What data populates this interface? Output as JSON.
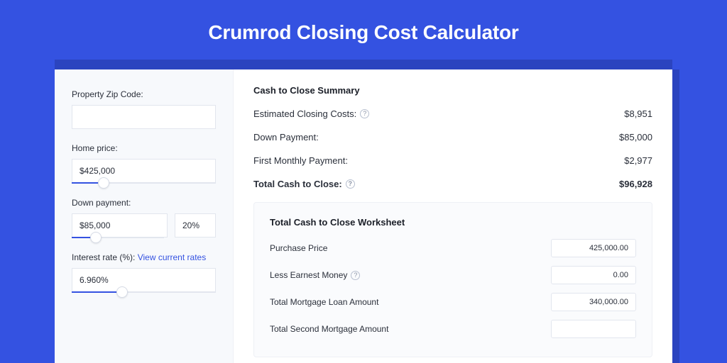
{
  "colors": {
    "page_bg": "#3452e1",
    "shadow": "#2b44bf",
    "card_bg": "#ffffff",
    "left_panel_bg": "#f7f9fc",
    "input_border": "#e2e6ee",
    "slider_fill": "#3452e1",
    "text": "#2a2f3a",
    "link": "#3452e1",
    "worksheet_bg": "#fafbfd"
  },
  "header": {
    "title": "Crumrod Closing Cost Calculator"
  },
  "inputs": {
    "zip": {
      "label": "Property Zip Code:",
      "value": ""
    },
    "home_price": {
      "label": "Home price:",
      "value": "$425,000",
      "slider_pct": 22
    },
    "down_payment": {
      "label": "Down payment:",
      "value": "$85,000",
      "pct_value": "20%",
      "slider_pct": 26
    },
    "interest_rate": {
      "label": "Interest rate (%):",
      "link_text": "View current rates",
      "value": "6.960%",
      "slider_pct": 35
    }
  },
  "summary": {
    "title": "Cash to Close Summary",
    "rows": [
      {
        "label": "Estimated Closing Costs:",
        "has_help": true,
        "value": "$8,951",
        "bold": false
      },
      {
        "label": "Down Payment:",
        "has_help": false,
        "value": "$85,000",
        "bold": false
      },
      {
        "label": "First Monthly Payment:",
        "has_help": false,
        "value": "$2,977",
        "bold": false
      },
      {
        "label": "Total Cash to Close:",
        "has_help": true,
        "value": "$96,928",
        "bold": true
      }
    ]
  },
  "worksheet": {
    "title": "Total Cash to Close Worksheet",
    "rows": [
      {
        "label": "Purchase Price",
        "has_help": false,
        "value": "425,000.00"
      },
      {
        "label": "Less Earnest Money",
        "has_help": true,
        "value": "0.00"
      },
      {
        "label": "Total Mortgage Loan Amount",
        "has_help": false,
        "value": "340,000.00"
      },
      {
        "label": "Total Second Mortgage Amount",
        "has_help": false,
        "value": ""
      }
    ]
  }
}
